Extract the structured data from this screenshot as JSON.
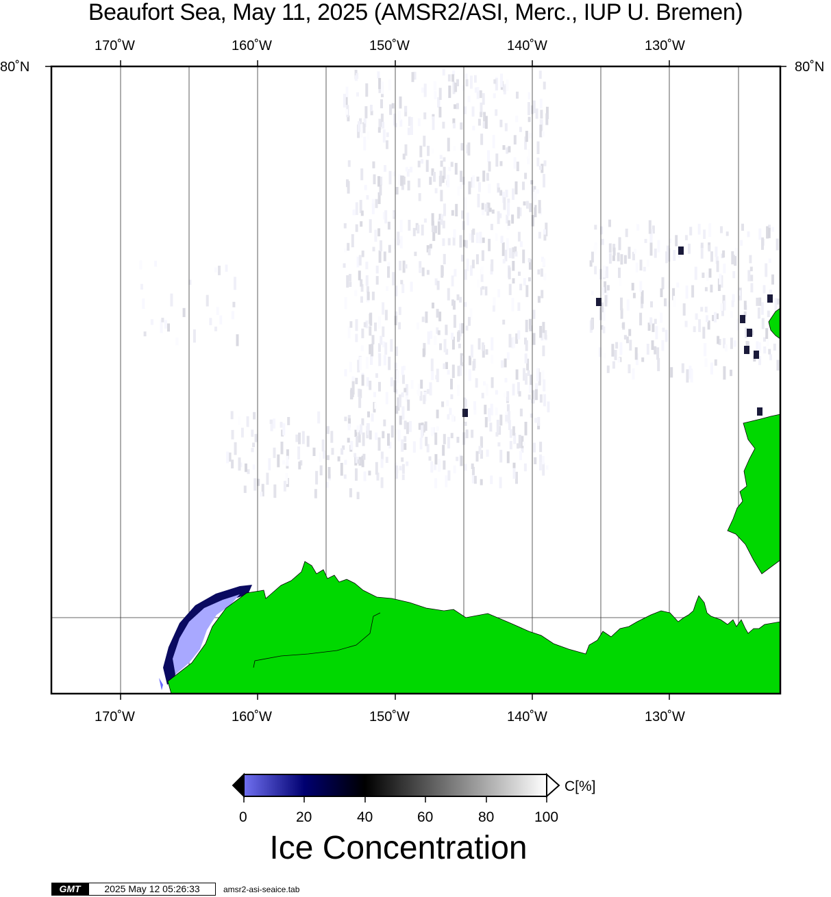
{
  "title": "Beaufort Sea, May 11, 2025 (AMSR2/ASI, Merc., IUP U. Bremen)",
  "map": {
    "lon_ticks": [
      "170˚W",
      "160˚W",
      "150˚W",
      "140˚W",
      "130˚W"
    ],
    "lat_labels": {
      "left": "80˚N",
      "right": "80˚N"
    },
    "colors": {
      "land": "#00d800",
      "frame": "#000000",
      "gridline": "#000000",
      "ocean": "#ffffff"
    }
  },
  "colorbar": {
    "unit_label": "C[%]",
    "ticks": [
      "0",
      "20",
      "40",
      "60",
      "80",
      "100"
    ],
    "gradient": [
      "#8080ff",
      "#000070",
      "#000000",
      "#ffffff"
    ],
    "title": "Ice Concentration"
  },
  "footer": {
    "logo": "GMT",
    "timestamp": "2025 May 12 05:26:33",
    "filename": "amsr2-asi-seaice.tab"
  }
}
